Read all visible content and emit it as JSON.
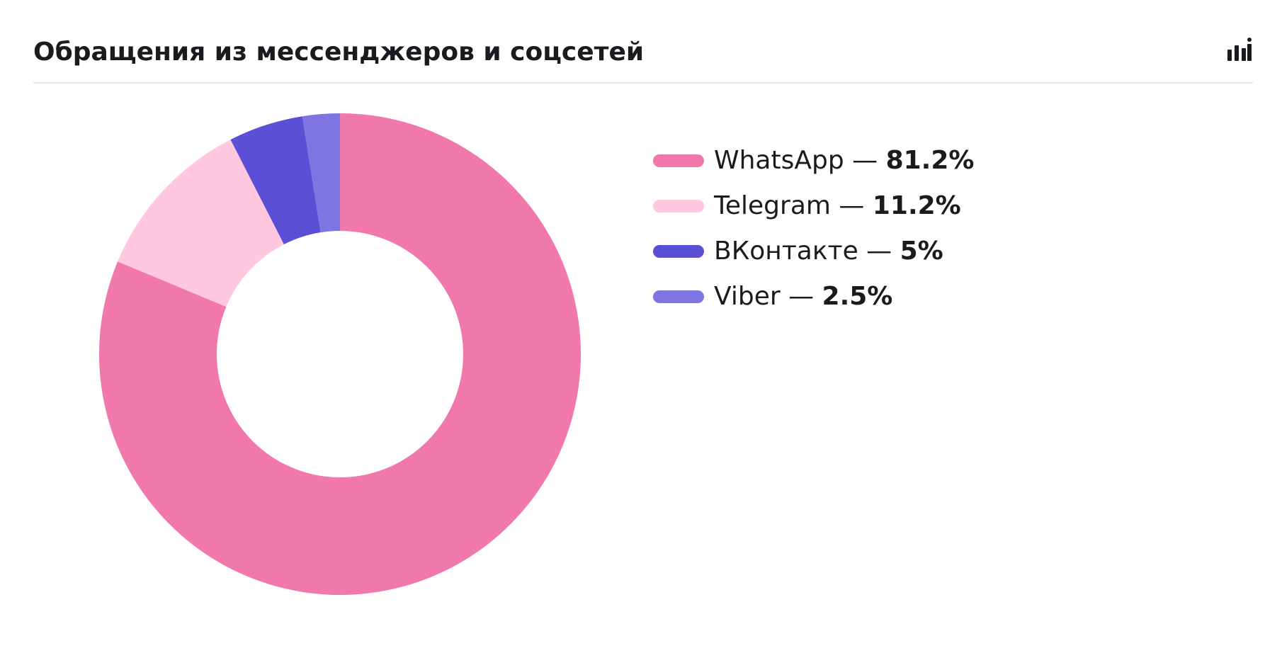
{
  "header": {
    "title": "Обращения из мессенджеров и соцсетей",
    "chart_type_icon": "bar-chart-icon"
  },
  "legend": {
    "separator": " — ",
    "items": [
      {
        "label": "WhatsApp",
        "value_text": "81.2%",
        "color": "#f078aa"
      },
      {
        "label": "Telegram",
        "value_text": "11.2%",
        "color": "#ffc8df"
      },
      {
        "label": "ВКонтакте",
        "value_text": "5%",
        "color": "#5b4fd6"
      },
      {
        "label": "Viber",
        "value_text": "2.5%",
        "color": "#7e74e2"
      }
    ]
  },
  "chart_data": {
    "type": "pie",
    "variant": "donut",
    "title": "Обращения из мессенджеров и соцсетей",
    "categories": [
      "WhatsApp",
      "Telegram",
      "ВКонтакте",
      "Viber"
    ],
    "values": [
      81.2,
      11.2,
      5,
      2.5
    ],
    "unit": "%",
    "colors": [
      "#f078aa",
      "#ffc8df",
      "#5b4fd6",
      "#7e74e2"
    ],
    "slice_order": "clockwise from top",
    "legend_position": "right"
  }
}
